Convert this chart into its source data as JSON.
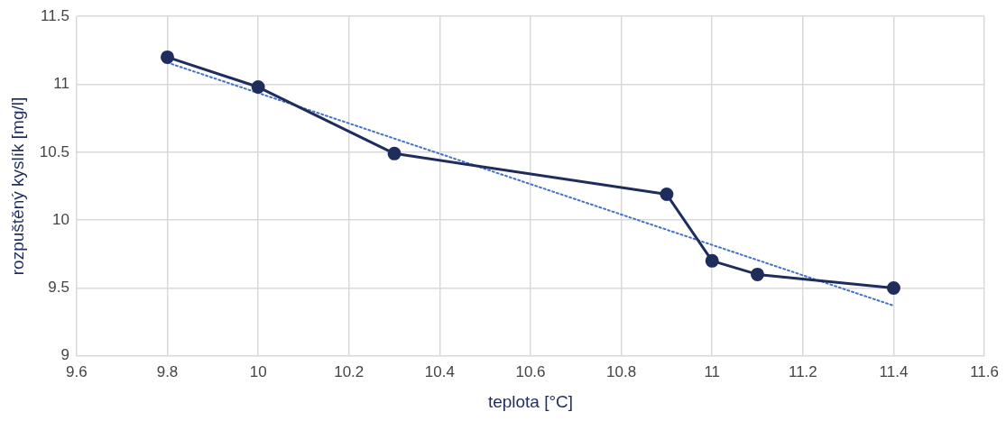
{
  "chart_data": {
    "type": "line",
    "xlabel": "teplota [°C]",
    "ylabel": "rozpuštěný kyslík [mg/l]",
    "xlim": [
      9.6,
      11.6
    ],
    "xticks": [
      9.6,
      9.8,
      10,
      10.2,
      10.4,
      10.6,
      10.8,
      11,
      11.2,
      11.4,
      11.6
    ],
    "ylim": [
      9,
      11.5
    ],
    "yticks": [
      9,
      9.5,
      10,
      10.5,
      11,
      11.5
    ],
    "grid": true,
    "series": [
      {
        "color": "#1f2d5c",
        "marker": "circle",
        "line_style": "solid",
        "x": [
          9.8,
          10,
          10.3,
          10.9,
          11,
          11.1,
          11.4
        ],
        "values": [
          11.2,
          10.98,
          10.49,
          10.19,
          9.7,
          9.6,
          9.5
        ]
      },
      {
        "color": "#4472c4",
        "marker": "none",
        "line_style": "dotted",
        "x": [
          9.8,
          11.4
        ],
        "values": [
          11.16,
          9.37
        ]
      }
    ]
  }
}
